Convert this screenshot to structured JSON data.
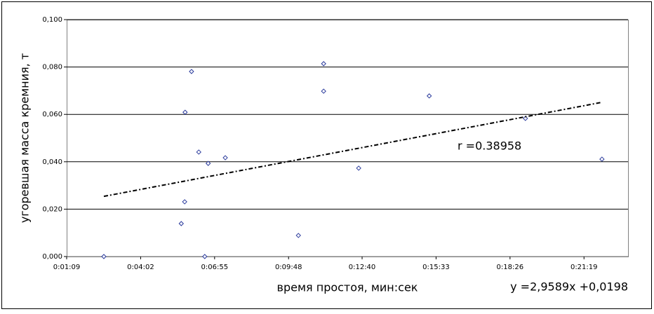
{
  "chart_data": {
    "type": "scatter",
    "x_label": "время простоя, мин:сек",
    "y_label": "угоревшая масса кремния, т",
    "annotations": [
      "r =0.38958",
      "y =2,9589x +0,0198"
    ],
    "series": [
      {
        "color": "#2a3a9c",
        "x": [
          156,
          337,
          345,
          346,
          361,
          378,
          392,
          400,
          440,
          611,
          670,
          670,
          752,
          917,
          1142,
          1321
        ],
        "values": [
          0,
          0.0139,
          0.0231,
          0.0609,
          0.0781,
          0.0441,
          0,
          0.0393,
          0.0417,
          0.0089,
          0.0814,
          0.0698,
          0.0373,
          0.0678,
          0.0583,
          0.0411
        ]
      }
    ],
    "trendline": {
      "color": "#000000",
      "x": [
        156,
        1321
      ],
      "values": [
        0.0254,
        0.0651
      ]
    },
    "xlim": [
      69,
      1382
    ],
    "xticks": [
      {
        "value": 69,
        "label": "0:01:09"
      },
      {
        "value": 242,
        "label": "0:04:02"
      },
      {
        "value": 415,
        "label": "0:06:55"
      },
      {
        "value": 588,
        "label": "0:09:48"
      },
      {
        "value": 760,
        "label": "0:12:40"
      },
      {
        "value": 933,
        "label": "0:15:33"
      },
      {
        "value": 1106,
        "label": "0:18:26"
      },
      {
        "value": 1279,
        "label": "0:21:19"
      }
    ],
    "ylim": [
      0,
      0.1
    ],
    "yticks": [
      {
        "value": 0,
        "label": "0,000"
      },
      {
        "value": 0.02,
        "label": "0,020"
      },
      {
        "value": 0.04,
        "label": "0,040"
      },
      {
        "value": 0.06,
        "label": "0,060"
      },
      {
        "value": 0.08,
        "label": "0,080"
      },
      {
        "value": 0.1,
        "label": "0,100"
      }
    ],
    "grid": true
  }
}
